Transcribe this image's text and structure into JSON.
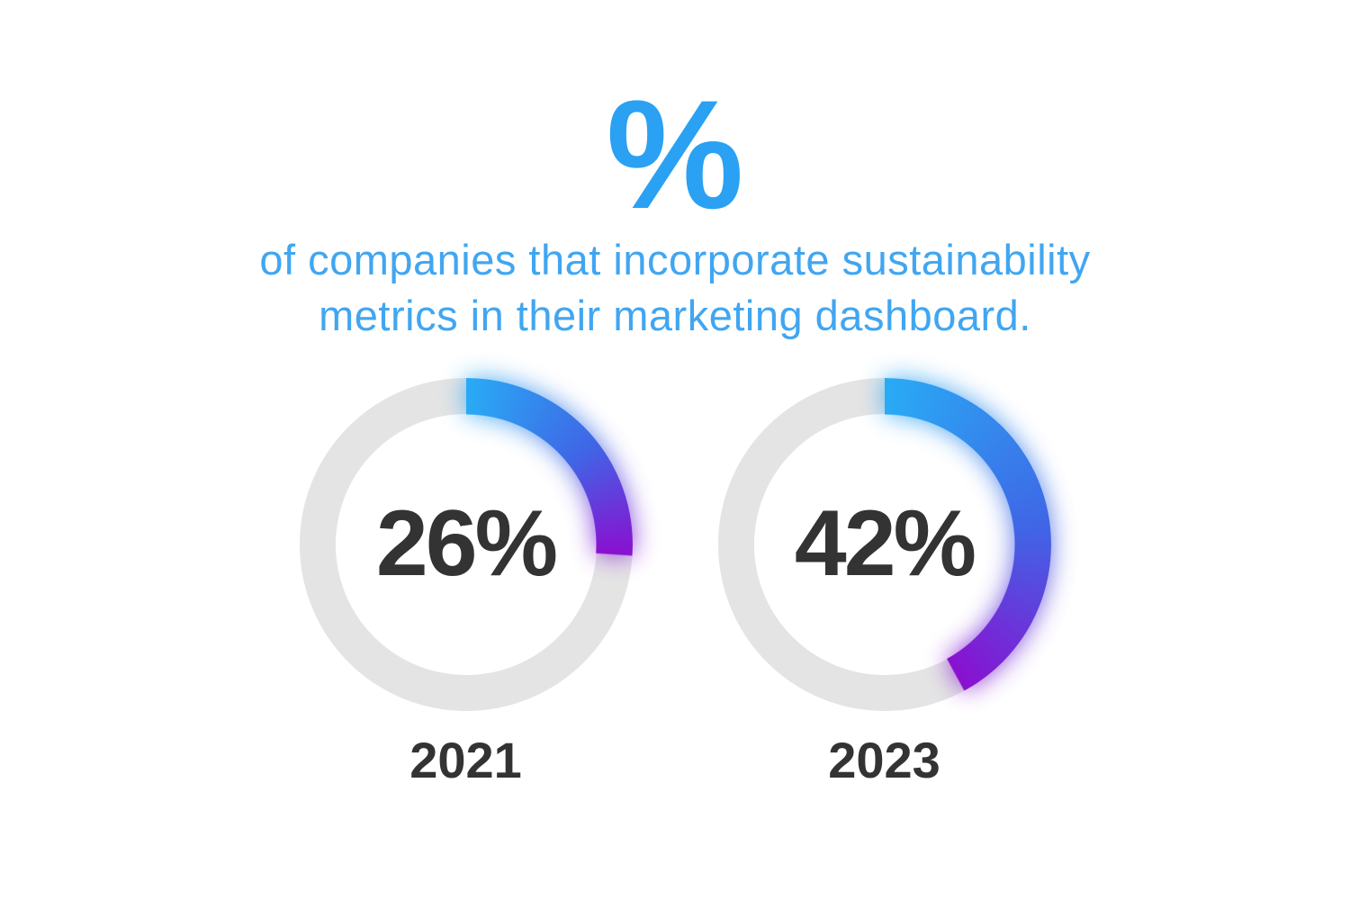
{
  "header": {
    "percent_symbol": "%",
    "subtitle_lines": [
      "of companies that incorporate sustainability",
      "metrics in their marketing dashboard."
    ]
  },
  "chart_data": {
    "type": "donut",
    "title": "% of companies that incorporate sustainability metrics in their marketing dashboard.",
    "categories": [
      "2021",
      "2023"
    ],
    "values": [
      26,
      42
    ],
    "unit": "%",
    "value_labels": [
      "26%",
      "42%"
    ],
    "value_range": [
      0,
      100
    ],
    "start_angle_deg": 0,
    "direction": "clockwise",
    "legend_position": "none",
    "grid": false,
    "colors": {
      "accent_blue": "#2aa1f2",
      "subtitle_blue": "#41a6f1",
      "track_gray": "#e4e4e4",
      "gradient_start": "#29abf5",
      "gradient_mid": "#3f66e6",
      "gradient_end": "#8a10d0",
      "value_text": "#333333"
    }
  }
}
